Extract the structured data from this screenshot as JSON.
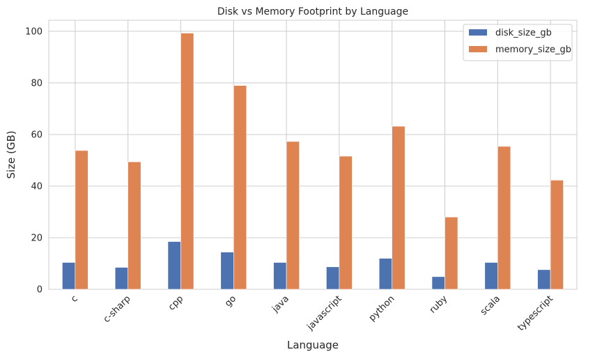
{
  "chart_data": {
    "type": "bar",
    "title": "Disk vs Memory Footprint by Language",
    "xlabel": "Language",
    "ylabel": "Size (GB)",
    "categories": [
      "c",
      "c-sharp",
      "cpp",
      "go",
      "java",
      "javascript",
      "python",
      "ruby",
      "scala",
      "typescript"
    ],
    "series": [
      {
        "name": "disk_size_gb",
        "color": "#4C72B0",
        "values": [
          10.4,
          8.5,
          18.5,
          14.4,
          10.4,
          8.7,
          12.0,
          4.9,
          10.4,
          7.6
        ]
      },
      {
        "name": "memory_size_gb",
        "color": "#DD8452",
        "values": [
          53.8,
          49.4,
          99.3,
          79.0,
          57.3,
          51.6,
          63.2,
          28.0,
          55.4,
          42.3
        ]
      }
    ],
    "ylim": [
      0,
      104.3
    ],
    "yticks": [
      0,
      20,
      40,
      60,
      80,
      100
    ],
    "grid": true,
    "legend_position": "upper right"
  }
}
